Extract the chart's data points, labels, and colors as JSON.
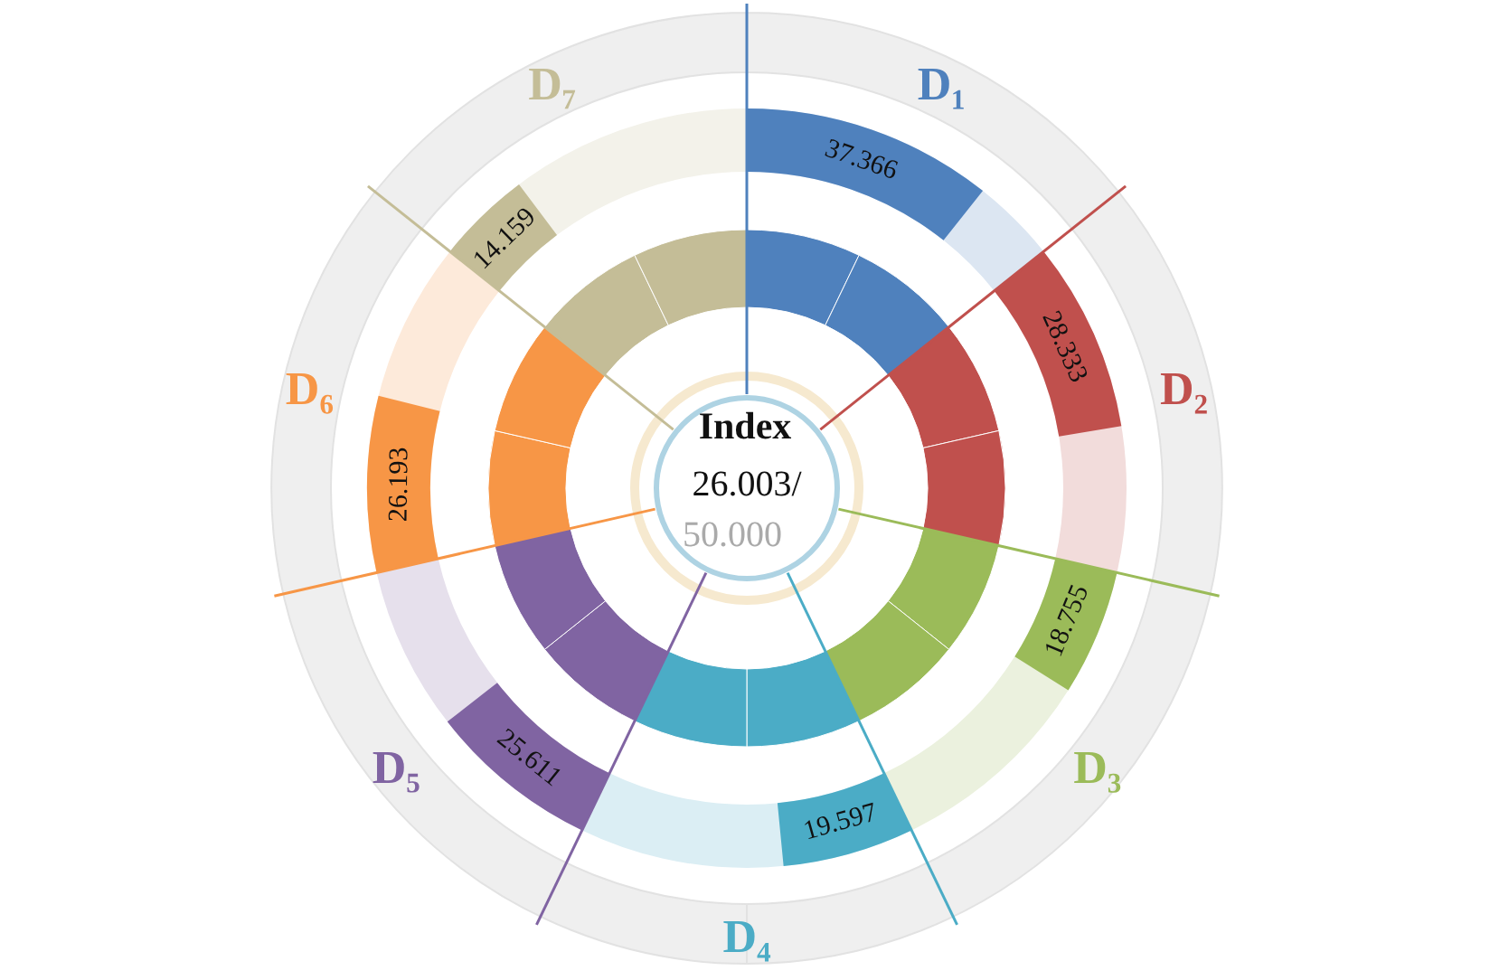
{
  "chart_data": {
    "type": "other",
    "title": "Index",
    "annotations": [
      "26.003/",
      "50.000"
    ],
    "categories": [
      "D₁",
      "D₂",
      "D₃",
      "D₄",
      "D₅",
      "D₆",
      "D₇"
    ],
    "values": [
      37.366,
      28.333,
      18.755,
      19.597,
      25.611,
      26.193,
      14.159
    ],
    "colors": [
      "#4f81bd",
      "#c0504d",
      "#9bbb59",
      "#4bacc6",
      "#8064a2",
      "#f79646",
      "#c4bd97"
    ],
    "data_labels": true
  }
}
